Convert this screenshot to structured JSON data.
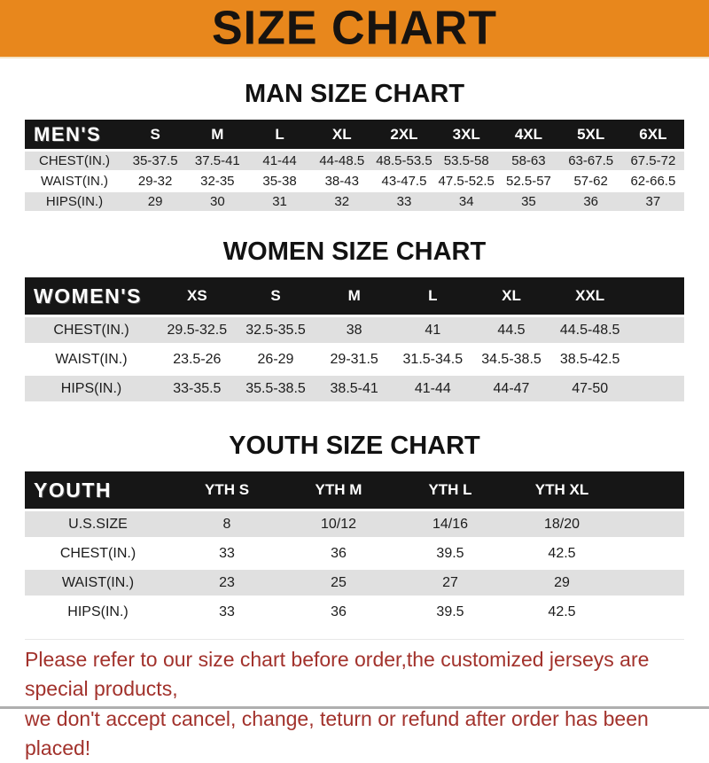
{
  "banner": {
    "title": "SIZE CHART",
    "bg_color": "#E8871C",
    "text_color": "#171310"
  },
  "chart_data": [
    {
      "type": "table",
      "title": "MAN SIZE CHART",
      "header": [
        "MEN'S",
        "S",
        "M",
        "L",
        "XL",
        "2XL",
        "3XL",
        "4XL",
        "5XL",
        "6XL"
      ],
      "rows": [
        [
          "CHEST(IN.)",
          "35-37.5",
          "37.5-41",
          "41-44",
          "44-48.5",
          "48.5-53.5",
          "53.5-58",
          "58-63",
          "63-67.5",
          "67.5-72"
        ],
        [
          "WAIST(IN.)",
          "29-32",
          "32-35",
          "35-38",
          "38-43",
          "43-47.5",
          "47.5-52.5",
          "52.5-57",
          "57-62",
          "62-66.5"
        ],
        [
          "HIPS(IN.)",
          "29",
          "30",
          "31",
          "32",
          "33",
          "34",
          "35",
          "36",
          "37"
        ]
      ]
    },
    {
      "type": "table",
      "title": "WOMEN SIZE CHART",
      "header": [
        "WOMEN'S",
        "XS",
        "S",
        "M",
        "L",
        "XL",
        "XXL"
      ],
      "rows": [
        [
          "CHEST(IN.)",
          "29.5-32.5",
          "32.5-35.5",
          "38",
          "41",
          "44.5",
          "44.5-48.5"
        ],
        [
          "WAIST(IN.)",
          "23.5-26",
          "26-29",
          "29-31.5",
          "31.5-34.5",
          "34.5-38.5",
          "38.5-42.5"
        ],
        [
          "HIPS(IN.)",
          "33-35.5",
          "35.5-38.5",
          "38.5-41",
          "41-44",
          "44-47",
          "47-50"
        ]
      ]
    },
    {
      "type": "table",
      "title": "YOUTH SIZE CHART",
      "header": [
        "YOUTH",
        "YTH S",
        "YTH M",
        "YTH L",
        "YTH XL"
      ],
      "rows": [
        [
          "U.S.SIZE",
          "8",
          "10/12",
          "14/16",
          "18/20"
        ],
        [
          "CHEST(IN.)",
          "33",
          "36",
          "39.5",
          "42.5"
        ],
        [
          "WAIST(IN.)",
          "23",
          "25",
          "27",
          "29"
        ],
        [
          "HIPS(IN.)",
          "33",
          "36",
          "39.5",
          "42.5"
        ]
      ]
    }
  ],
  "footer": {
    "line1": "Please refer to our size chart before order,the customized jerseys are special products,",
    "line2": "we don't accept cancel, change, teturn or refund after order has been placed!",
    "text_color": "#A2322C"
  },
  "colors": {
    "header_bar": "#161616",
    "row_stripe": "#E0E0E0"
  }
}
